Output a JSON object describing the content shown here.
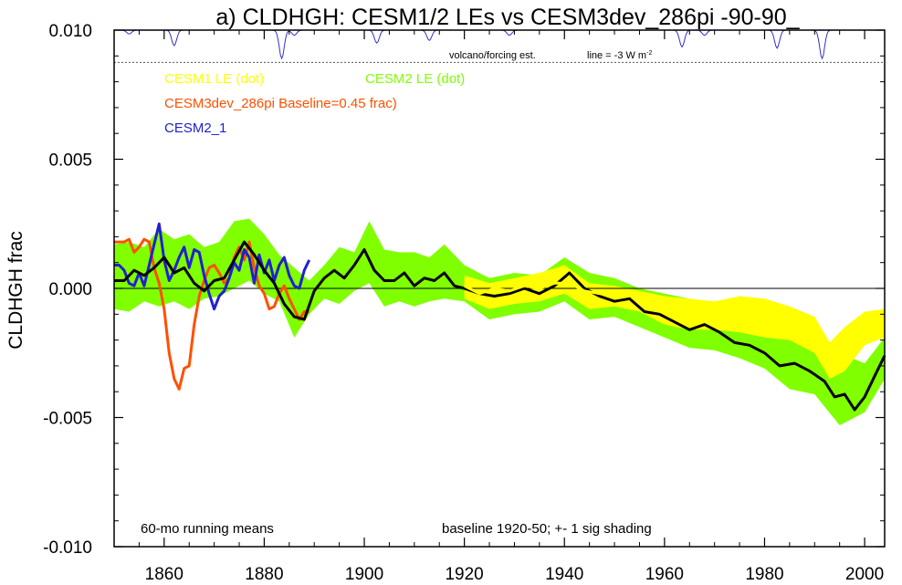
{
  "chart_data": {
    "type": "line",
    "title": "a) CLDHGH: CESM1/2 LEs vs CESM3dev_286pi -90-90_",
    "ylabel": "CLDHGH frac",
    "xlim": [
      1850,
      2004
    ],
    "ylim": [
      -0.01,
      0.01
    ],
    "x_ticks": [
      1860,
      1880,
      1900,
      1920,
      1940,
      1960,
      1980,
      2000
    ],
    "y_ticks": [
      0.01,
      0.005,
      0.0,
      -0.005,
      -0.01
    ],
    "y_tick_labels": [
      "0.010",
      "0.005",
      "0.000",
      "-0.005",
      "-0.010"
    ],
    "zero_line": true,
    "legend": {
      "cesm1": "CESM1 LE (dot)",
      "cesm2": "CESM2 LE (dot)",
      "cesm3": "CESM3dev_286pi Baseline=0.45 frac)",
      "cesm2_1": "CESM2_1"
    },
    "annotations": {
      "volcano": "volcano/forcing est.",
      "line_scale": "line = -3 W m",
      "line_scale_sup": "-2",
      "running_means": "60-mo running means",
      "baseline": "baseline 1920-50; +- 1 sig shading"
    },
    "colors": {
      "cesm1": "#ffff00",
      "cesm2": "#80ff00",
      "cesm3": "#ff5000",
      "cesm2_1": "#2020d0",
      "mean": "#000000",
      "volcano": "#3030d0"
    },
    "volcano_dips": [
      {
        "year": 1853,
        "depth": 0.00015
      },
      {
        "year": 1862,
        "depth": 0.0006
      },
      {
        "year": 1883.5,
        "depth": 0.0011
      },
      {
        "year": 1886,
        "depth": 0.0002
      },
      {
        "year": 1902.5,
        "depth": 0.0005
      },
      {
        "year": 1913,
        "depth": 0.0004
      },
      {
        "year": 1929,
        "depth": 0.0002
      },
      {
        "year": 1963.5,
        "depth": 0.00065
      },
      {
        "year": 1968,
        "depth": 0.0002
      },
      {
        "year": 1982.5,
        "depth": 0.0007
      },
      {
        "year": 1991.5,
        "depth": 0.0011
      }
    ],
    "series": [
      {
        "name": "CESM2 LE (dot)",
        "kind": "band",
        "x": [
          1850,
          1853,
          1856,
          1859,
          1862,
          1865,
          1868,
          1871,
          1874,
          1877,
          1880,
          1883,
          1886,
          1889,
          1892,
          1895,
          1898,
          1901,
          1904,
          1907,
          1910,
          1913,
          1916,
          1920,
          1925,
          1930,
          1935,
          1940,
          1945,
          1950,
          1955,
          1960,
          1965,
          1970,
          1975,
          1980,
          1985,
          1990,
          1995,
          2000,
          2004
        ],
        "lower": [
          -0.0008,
          -0.0009,
          -0.0005,
          -0.0007,
          -0.0005,
          -0.0008,
          -0.0004,
          -0.0003,
          0.0,
          0.0003,
          -0.0002,
          -0.0005,
          -0.0019,
          -0.001,
          -0.0004,
          -0.0006,
          -0.0001,
          0.0002,
          -0.0007,
          -0.0005,
          -0.0007,
          -0.0005,
          -0.0004,
          -0.0005,
          -0.0012,
          -0.001,
          -0.0009,
          -0.0005,
          -0.0012,
          -0.0011,
          -0.0015,
          -0.0019,
          -0.0023,
          -0.0024,
          -0.0027,
          -0.0031,
          -0.0039,
          -0.0041,
          -0.0053,
          -0.0048,
          -0.0035
        ],
        "upper": [
          0.0017,
          0.0018,
          0.0016,
          0.0023,
          0.0019,
          0.0021,
          0.0016,
          0.0018,
          0.0026,
          0.0027,
          0.0021,
          0.0013,
          0.0008,
          0.0003,
          0.0009,
          0.0016,
          0.0014,
          0.0026,
          0.0015,
          0.0014,
          0.0014,
          0.0012,
          0.0017,
          0.0009,
          0.0004,
          0.0006,
          0.0005,
          0.0012,
          0.0006,
          0.0004,
          0.0,
          -0.0002,
          -0.0004,
          -0.0006,
          -0.0007,
          -0.0013,
          -0.0019,
          -0.0017,
          -0.0025,
          -0.0029,
          -0.0019
        ]
      },
      {
        "name": "CESM1 LE (dot)",
        "kind": "band",
        "x": [
          1920,
          1925,
          1930,
          1935,
          1940,
          1945,
          1950,
          1955,
          1960,
          1965,
          1970,
          1975,
          1980,
          1985,
          1990,
          1993,
          1996,
          2000,
          2004
        ],
        "lower": [
          -0.0004,
          -0.0008,
          -0.0006,
          -0.0005,
          -0.0002,
          -0.0008,
          -0.0007,
          -0.0009,
          -0.0014,
          -0.0016,
          -0.0016,
          -0.0017,
          -0.0019,
          -0.002,
          -0.0025,
          -0.0035,
          -0.0032,
          -0.0022,
          -0.0019
        ],
        "upper": [
          0.0005,
          0.0002,
          0.0004,
          0.0006,
          0.0009,
          0.0002,
          0.0001,
          -0.0001,
          -0.0003,
          -0.0004,
          -0.0005,
          -0.0003,
          -0.0004,
          -0.0007,
          -0.0011,
          -0.0021,
          -0.0015,
          -0.0009,
          -0.0008
        ]
      },
      {
        "name": "CESM3dev_286pi",
        "kind": "line",
        "x": [
          1850,
          1852,
          1853,
          1854,
          1855,
          1856,
          1857,
          1858,
          1859,
          1860,
          1861,
          1862,
          1863,
          1864,
          1865,
          1866,
          1867,
          1868,
          1869,
          1870,
          1871,
          1872,
          1873,
          1874,
          1875,
          1876,
          1877,
          1878,
          1879,
          1880,
          1881,
          1882,
          1883,
          1884,
          1885,
          1886,
          1887,
          1888,
          1889
        ],
        "y": [
          0.0018,
          0.0018,
          0.0019,
          0.0014,
          0.0016,
          0.0019,
          0.0018,
          0.0008,
          0.0002,
          -0.0008,
          -0.0025,
          -0.0035,
          -0.0039,
          -0.0031,
          -0.003,
          -0.0014,
          -0.0003,
          0.0003,
          0.0008,
          0.0009,
          0.0006,
          0.0002,
          0.0004,
          0.0012,
          0.0016,
          0.0011,
          0.0018,
          0.0008,
          0.0001,
          -0.0002,
          -0.0008,
          -0.0007,
          -0.0002,
          0.0001,
          -0.0004,
          -0.0008,
          -0.0012,
          -0.0009,
          -0.0009
        ]
      },
      {
        "name": "CESM2_1",
        "kind": "line",
        "x": [
          1850,
          1851,
          1852,
          1853,
          1854,
          1855,
          1856,
          1857,
          1858,
          1859,
          1860,
          1861,
          1862,
          1863,
          1864,
          1865,
          1866,
          1867,
          1868,
          1869,
          1870,
          1871,
          1872,
          1873,
          1874,
          1875,
          1876,
          1877,
          1878,
          1879,
          1880,
          1881,
          1882,
          1883,
          1884,
          1885,
          1886,
          1887,
          1888,
          1889
        ],
        "y": [
          0.0009,
          0.0009,
          0.0007,
          0.0002,
          0.0001,
          0.0006,
          0.0001,
          0.0009,
          0.0017,
          0.0025,
          0.0011,
          0.0003,
          0.0007,
          0.0012,
          0.0016,
          0.0008,
          0.0015,
          0.0014,
          0.0005,
          -0.0002,
          -0.0008,
          -0.0003,
          -0.0001,
          0.0004,
          0.001,
          0.0007,
          0.0015,
          0.0012,
          0.0002,
          0.0013,
          0.0006,
          0.0011,
          0.0003,
          0.0009,
          0.0012,
          0.0005,
          0.0001,
          0.0,
          0.0007,
          0.0011
        ]
      },
      {
        "name": "CESM2 LE mean",
        "kind": "line",
        "x": [
          1850,
          1852,
          1854,
          1856,
          1858,
          1860,
          1862,
          1864,
          1866,
          1868,
          1870,
          1872,
          1874,
          1876,
          1878,
          1880,
          1882,
          1884,
          1886,
          1888,
          1890,
          1892,
          1894,
          1896,
          1898,
          1900,
          1902,
          1904,
          1906,
          1908,
          1910,
          1912,
          1914,
          1916,
          1918,
          1920,
          1923,
          1926,
          1929,
          1932,
          1935,
          1938,
          1941,
          1944,
          1947,
          1950,
          1953,
          1956,
          1959,
          1962,
          1965,
          1968,
          1971,
          1974,
          1977,
          1980,
          1983,
          1986,
          1989,
          1992,
          1994,
          1996,
          1998,
          2000,
          2002,
          2004
        ],
        "y": [
          0.0003,
          0.0003,
          0.0007,
          0.0005,
          0.0008,
          0.0012,
          0.0006,
          0.0008,
          0.0002,
          -0.0001,
          0.0003,
          0.0004,
          0.0011,
          0.0018,
          0.0013,
          0.0007,
          0.0002,
          -0.0006,
          -0.0011,
          -0.0012,
          -0.0001,
          0.0004,
          0.0007,
          0.0004,
          0.0009,
          0.0015,
          0.0007,
          0.0003,
          0.0003,
          0.0006,
          0.0001,
          0.0004,
          0.0003,
          0.0006,
          0.0001,
          0.0,
          -0.0002,
          -0.0003,
          -0.0002,
          0.0,
          -0.0002,
          0.0001,
          0.0006,
          0.0,
          -0.0003,
          -0.0005,
          -0.0004,
          -0.0009,
          -0.001,
          -0.0013,
          -0.0016,
          -0.0014,
          -0.0017,
          -0.0021,
          -0.0022,
          -0.0025,
          -0.003,
          -0.0029,
          -0.0032,
          -0.0036,
          -0.0042,
          -0.0041,
          -0.0047,
          -0.0042,
          -0.0034,
          -0.0026
        ]
      },
      {
        "name": "CESM1 LE mean",
        "kind": "line",
        "x": [
          1920,
          1923,
          1926,
          1929,
          1932,
          1935,
          1938,
          1941,
          1944,
          1947,
          1950,
          1953,
          1956,
          1959,
          1962,
          1965,
          1968,
          1971,
          1974,
          1977,
          1980,
          1983,
          1986,
          1988,
          1990,
          1992,
          1994,
          1996,
          1998,
          2000,
          2002,
          2004
        ],
        "y": [
          0.0001,
          -0.0002,
          0.0,
          -0.0001,
          0.0001,
          0.0,
          0.0002,
          0.0002,
          -0.0001,
          -0.0002,
          -0.0002,
          -0.0002,
          -0.0004,
          -0.0006,
          -0.0009,
          -0.0008,
          -0.0009,
          -0.001,
          -0.001,
          -0.0012,
          -0.0011,
          -0.0014,
          -0.0013,
          -0.0016,
          -0.002,
          -0.0028,
          -0.0029,
          -0.0021,
          -0.0016,
          -0.0015,
          -0.0015,
          -0.0015
        ]
      }
    ]
  }
}
